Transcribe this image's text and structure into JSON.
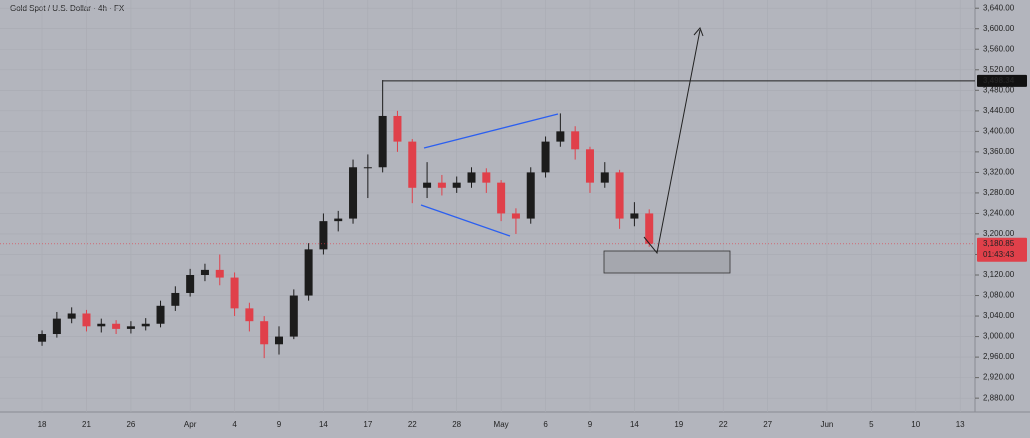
{
  "chart_data": {
    "type": "candlestick",
    "title": "Gold Spot / U.S. Dollar · 4h · FX",
    "x": [
      0,
      1,
      2,
      3,
      4,
      5,
      6,
      7,
      8,
      9,
      10,
      11,
      12,
      13,
      14,
      15,
      16,
      17,
      18,
      19,
      20,
      21,
      22,
      23,
      24,
      25,
      26,
      27,
      28,
      29,
      30,
      31,
      32,
      33,
      34,
      35,
      36,
      37,
      38,
      39,
      40,
      41
    ],
    "open": [
      2990,
      3005,
      3035,
      3045,
      3020,
      3025,
      3015,
      3020,
      3025,
      3060,
      3085,
      3120,
      3130,
      3115,
      3055,
      3030,
      2985,
      3000,
      3080,
      3170,
      3225,
      3230,
      3330,
      3330,
      3430,
      3380,
      3290,
      3300,
      3290,
      3300,
      3320,
      3300,
      3240,
      3230,
      3320,
      3380,
      3400,
      3365,
      3300,
      3320,
      3230,
      3240
    ],
    "high": [
      3012,
      3048,
      3057,
      3052,
      3035,
      3032,
      3030,
      3036,
      3070,
      3098,
      3132,
      3142,
      3160,
      3125,
      3066,
      3040,
      3020,
      3092,
      3182,
      3240,
      3245,
      3345,
      3355,
      3500,
      3440,
      3385,
      3340,
      3315,
      3312,
      3330,
      3328,
      3305,
      3250,
      3330,
      3390,
      3435,
      3410,
      3370,
      3340,
      3325,
      3262,
      3248
    ],
    "low": [
      2982,
      2998,
      3026,
      3010,
      3008,
      3005,
      3006,
      3012,
      3018,
      3050,
      3078,
      3108,
      3100,
      3040,
      3010,
      2958,
      2965,
      2995,
      3070,
      3160,
      3205,
      3220,
      3270,
      3320,
      3360,
      3260,
      3270,
      3275,
      3280,
      3290,
      3280,
      3225,
      3200,
      3220,
      3310,
      3370,
      3345,
      3280,
      3290,
      3210,
      3215,
      3175
    ],
    "close": [
      3005,
      3035,
      3045,
      3020,
      3025,
      3015,
      3020,
      3025,
      3060,
      3085,
      3120,
      3130,
      3115,
      3055,
      3030,
      2985,
      3000,
      3080,
      3170,
      3225,
      3230,
      3330,
      3330,
      3430,
      3380,
      3290,
      3300,
      3290,
      3300,
      3320,
      3300,
      3240,
      3230,
      3320,
      3380,
      3400,
      3365,
      3300,
      3320,
      3230,
      3240,
      3181
    ],
    "up_color": "#1c1c1c",
    "down_color": "#e0404a",
    "xlim": [
      -2.84,
      63
    ],
    "ylim": [
      2853,
      3656
    ],
    "xticks": [
      {
        "value": 0,
        "label": "18"
      },
      {
        "value": 3,
        "label": "21"
      },
      {
        "value": 6,
        "label": "26"
      },
      {
        "value": 10,
        "label": "Apr"
      },
      {
        "value": 13,
        "label": "4"
      },
      {
        "value": 16,
        "label": "9"
      },
      {
        "value": 19,
        "label": "14"
      },
      {
        "value": 22,
        "label": "17"
      },
      {
        "value": 25,
        "label": "22"
      },
      {
        "value": 28,
        "label": "28"
      },
      {
        "value": 31,
        "label": "May"
      },
      {
        "value": 34,
        "label": "6"
      },
      {
        "value": 37,
        "label": "9"
      },
      {
        "value": 40,
        "label": "14"
      },
      {
        "value": 43,
        "label": "19"
      },
      {
        "value": 46,
        "label": "22"
      },
      {
        "value": 49,
        "label": "27"
      },
      {
        "value": 53,
        "label": "Jun"
      },
      {
        "value": 56,
        "label": "5"
      },
      {
        "value": 59,
        "label": "10"
      },
      {
        "value": 62,
        "label": "13"
      }
    ],
    "yticks": [
      {
        "value": 2880,
        "label": "2,880.00"
      },
      {
        "value": 2920,
        "label": "2,920.00"
      },
      {
        "value": 2960,
        "label": "2,960.00"
      },
      {
        "value": 3000,
        "label": "3,000.00"
      },
      {
        "value": 3040,
        "label": "3,040.00"
      },
      {
        "value": 3080,
        "label": "3,080.00"
      },
      {
        "value": 3120,
        "label": "3,120.00"
      },
      {
        "value": 3160,
        "label": "3,160.00"
      },
      {
        "value": 3200,
        "label": "3,200.00"
      },
      {
        "value": 3240,
        "label": "3,240.00"
      },
      {
        "value": 3280,
        "label": "3,280.00"
      },
      {
        "value": 3320,
        "label": "3,320.00"
      },
      {
        "value": 3360,
        "label": "3,360.00"
      },
      {
        "value": 3400,
        "label": "3,400.00"
      },
      {
        "value": 3440,
        "label": "3,440.00"
      },
      {
        "value": 3480,
        "label": "3,480.00"
      },
      {
        "value": 3520,
        "label": "3,520.00"
      },
      {
        "value": 3560,
        "label": "3,560.00"
      },
      {
        "value": 3600,
        "label": "3,600.00"
      },
      {
        "value": 3640,
        "label": "3,640.00"
      }
    ],
    "price_line": {
      "value": 3498.34,
      "label": "3,498.34"
    },
    "last_price": {
      "value": 3180.85,
      "label": "3,180.85"
    },
    "countdown": "01:43:43"
  }
}
